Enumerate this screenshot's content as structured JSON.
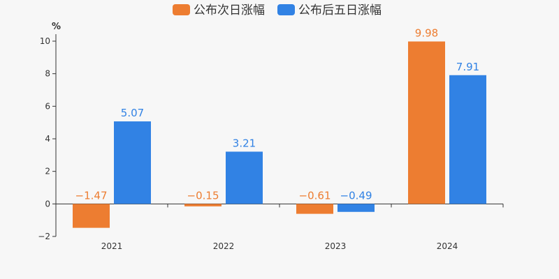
{
  "chart_data": {
    "type": "bar",
    "categories": [
      "2021",
      "2022",
      "2023",
      "2024"
    ],
    "series": [
      {
        "name": "公布次日涨幅",
        "values": [
          -1.47,
          -0.15,
          -0.61,
          9.98
        ],
        "labels": [
          "−1.47",
          "−0.15",
          "−0.61",
          "9.98"
        ],
        "color": "#ed7d31"
      },
      {
        "name": "公布后五日涨幅",
        "values": [
          5.07,
          3.21,
          -0.49,
          7.91
        ],
        "labels": [
          "5.07",
          "3.21",
          "−0.49",
          "7.91"
        ],
        "color": "#3182e4"
      }
    ],
    "ylabel": "%",
    "ylim": [
      -2,
      10
    ],
    "yticks": [
      10,
      8,
      6,
      4,
      2,
      0,
      -2
    ],
    "ytick_labels": [
      "10",
      "8",
      "6",
      "4",
      "2",
      "0",
      "−2"
    ],
    "grid": false,
    "legend": "top-center"
  }
}
